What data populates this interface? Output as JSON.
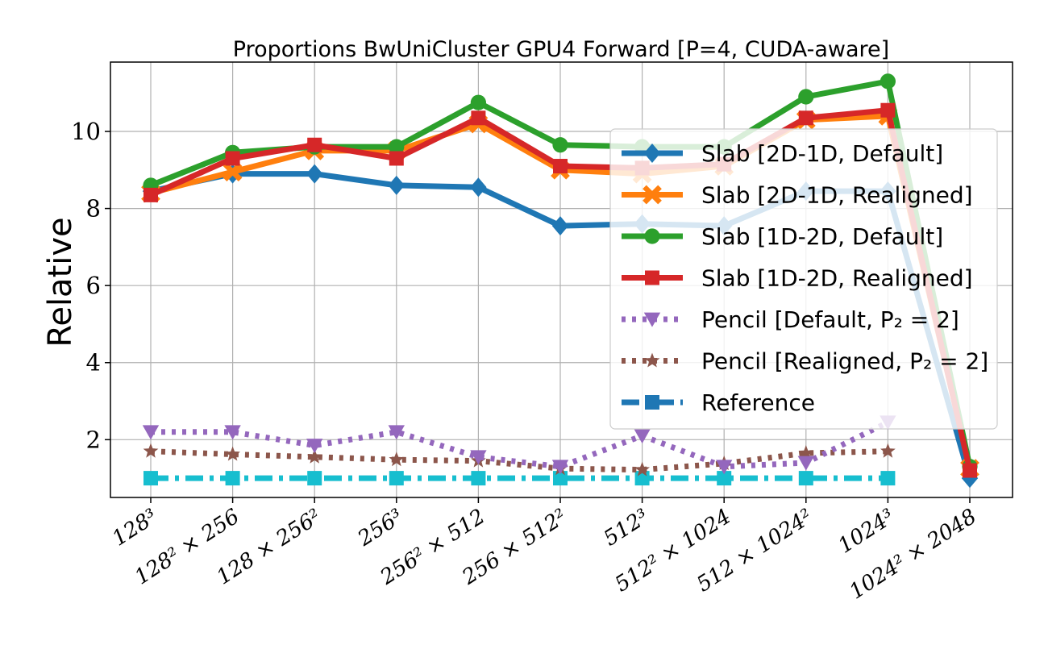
{
  "chart_data": {
    "type": "line",
    "title": "Proportions BwUniCluster GPU4 Forward [P=4, CUDA-aware]",
    "xlabel": "",
    "ylabel": "Relative",
    "ylim": [
      0.5,
      11.8
    ],
    "yticks": [
      2,
      4,
      6,
      8,
      10
    ],
    "ytick_labels": [
      "2",
      "4",
      "6",
      "8",
      "10"
    ],
    "grid": true,
    "legend_position": "right",
    "categories": [
      "128³",
      "128² × 256",
      "128 × 256²",
      "256³",
      "256² × 512",
      "256 × 512²",
      "512³",
      "512² × 1024",
      "512 × 1024²",
      "1024³",
      "1024² × 2048"
    ],
    "series": [
      {
        "name": "Slab [2D-1D, Default]",
        "color": "#1f77b4",
        "style": "solid",
        "marker": "diamond",
        "values": [
          8.45,
          8.9,
          8.9,
          8.6,
          8.55,
          7.55,
          7.6,
          7.55,
          8.45,
          8.45,
          1.0
        ]
      },
      {
        "name": "Slab [2D-1D, Realigned]",
        "color": "#ff7f0e",
        "style": "solid",
        "marker": "x",
        "values": [
          8.4,
          8.95,
          9.5,
          9.5,
          10.2,
          9.0,
          8.9,
          9.1,
          10.3,
          10.4,
          1.25
        ]
      },
      {
        "name": "Slab [1D-2D, Default]",
        "color": "#2ca02c",
        "style": "solid",
        "marker": "circle",
        "values": [
          8.6,
          9.45,
          9.6,
          9.6,
          10.75,
          9.65,
          9.6,
          9.6,
          10.9,
          11.3,
          1.3
        ]
      },
      {
        "name": "Slab [1D-2D, Realigned]",
        "color": "#d62728",
        "style": "solid",
        "marker": "square",
        "values": [
          8.35,
          9.3,
          9.65,
          9.3,
          10.35,
          9.1,
          9.05,
          9.15,
          10.35,
          10.55,
          1.2
        ]
      },
      {
        "name": "Pencil [Default, P₂ = 2]",
        "color": "#9467bd",
        "style": "dotted",
        "marker": "triangle-down",
        "values": [
          2.2,
          2.2,
          1.85,
          2.2,
          1.55,
          1.3,
          2.1,
          1.3,
          1.4,
          2.45,
          null
        ]
      },
      {
        "name": "Pencil [Realigned, P₂ = 2]",
        "color": "#8c564b",
        "style": "dotted",
        "marker": "star",
        "values": [
          1.7,
          1.62,
          1.55,
          1.48,
          1.45,
          1.25,
          1.22,
          1.38,
          1.65,
          1.7,
          null
        ]
      },
      {
        "name": "Reference",
        "color": "#17becf",
        "legend_color": "#1f77b4",
        "style": "dashdot",
        "marker": "square",
        "values": [
          1.0,
          1.0,
          1.0,
          1.0,
          1.0,
          1.0,
          1.0,
          1.0,
          1.0,
          1.0,
          null
        ]
      }
    ]
  }
}
